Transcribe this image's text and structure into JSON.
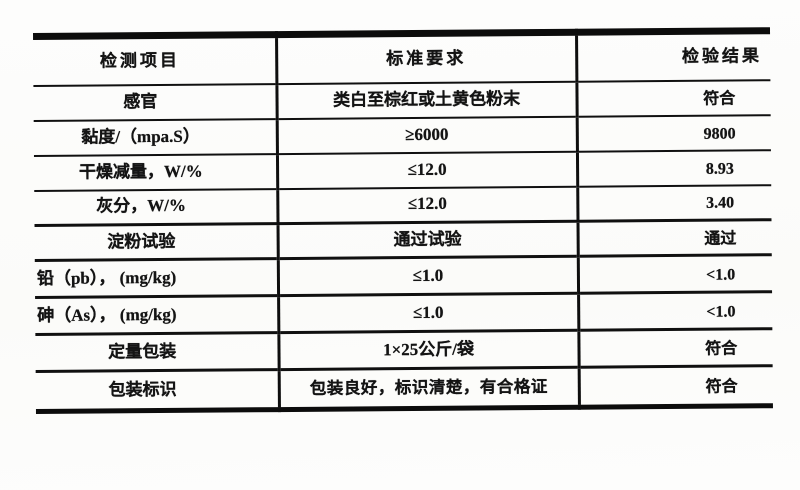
{
  "document_kind": "scanned-inspection-report-table",
  "colors": {
    "ink": "#0c0c0c",
    "paper": "#fdfdfc"
  },
  "table": {
    "headers": [
      "检测项目",
      "标准要求",
      "检验结果"
    ],
    "rows": [
      {
        "item": "感官",
        "requirement": "类白至棕红或土黄色粉末",
        "result": "符合"
      },
      {
        "item": "黏度/（mpa.S）",
        "requirement": "≥6000",
        "result": "9800"
      },
      {
        "item": "干燥减量，W/%",
        "requirement": "≤12.0",
        "result": "8.93"
      },
      {
        "item": "灰分，W/%",
        "requirement": "≤12.0",
        "result": "3.40"
      },
      {
        "item": "淀粉试验",
        "requirement": "通过试验",
        "result": "通过"
      },
      {
        "item": "铅（pb）， (mg/kg)",
        "requirement": "≤1.0",
        "result": "<1.0"
      },
      {
        "item": "砷（As）， (mg/kg)",
        "requirement": "≤1.0",
        "result": "<1.0"
      },
      {
        "item": "定量包装",
        "requirement": "1×25公斤/袋",
        "result": "符合"
      },
      {
        "item": "包装标识",
        "requirement": "包装良好，标识清楚，有合格证",
        "result": "符合"
      }
    ]
  }
}
